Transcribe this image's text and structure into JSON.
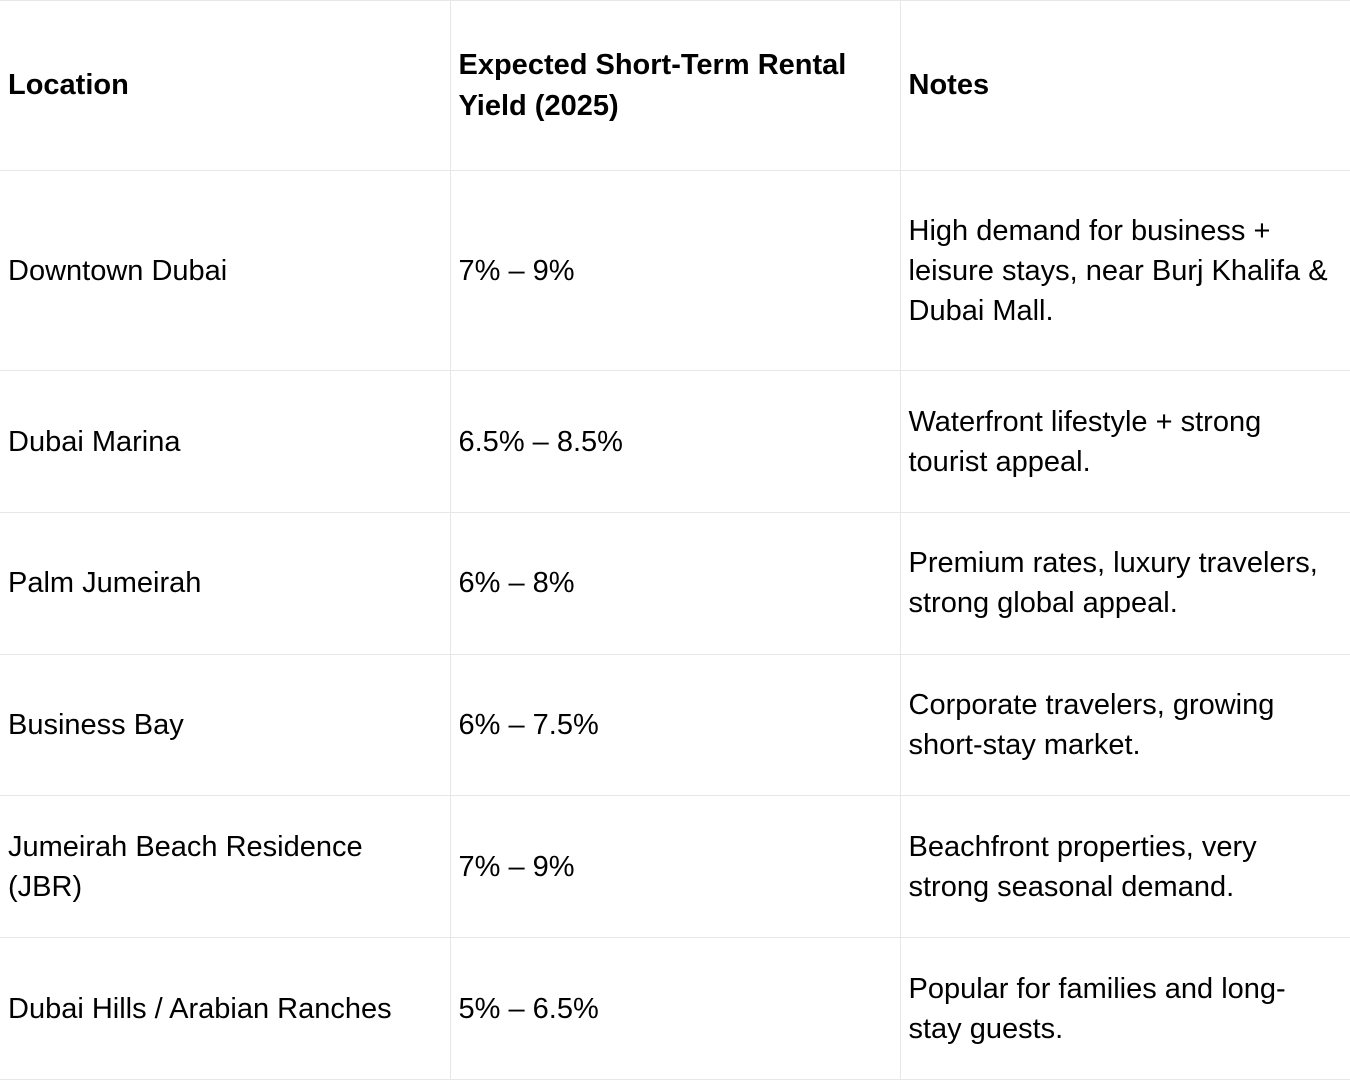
{
  "colors": {
    "background": "#ffffff",
    "border": "#e7e7e7",
    "text": "#000000"
  },
  "table": {
    "columns": [
      {
        "label": "Location"
      },
      {
        "label": "Expected Short-Term Rental Yield (2025)"
      },
      {
        "label": "Notes"
      }
    ],
    "rows": [
      {
        "location": "Downtown Dubai",
        "yield": "7% – 9%",
        "notes": "High demand for business + leisure stays, near Burj Khalifa & Dubai Mall."
      },
      {
        "location": "Dubai Marina",
        "yield": "6.5% – 8.5%",
        "notes": "Waterfront lifestyle + strong tourist appeal."
      },
      {
        "location": "Palm Jumeirah",
        "yield": "6% – 8%",
        "notes": "Premium rates, luxury travelers, strong global appeal."
      },
      {
        "location": "Business Bay",
        "yield": "6% – 7.5%",
        "notes": "Corporate travelers, growing short-stay market."
      },
      {
        "location": "Jumeirah Beach Residence (JBR)",
        "yield": "7% – 9%",
        "notes": "Beachfront properties, very strong seasonal demand."
      },
      {
        "location": "Dubai Hills / Arabian Ranches",
        "yield": "5% – 6.5%",
        "notes": "Popular for families and long-stay guests."
      }
    ]
  }
}
